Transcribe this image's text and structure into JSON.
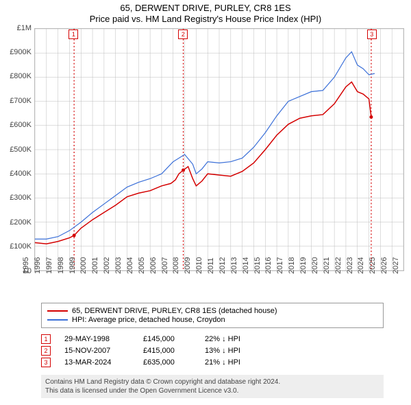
{
  "title": {
    "line1": "65, DERWENT DRIVE, PURLEY, CR8 1ES",
    "line2": "Price paid vs. HM Land Registry's House Price Index (HPI)",
    "fontsize": 13
  },
  "chart": {
    "type": "line",
    "background_color": "#ffffff",
    "grid_color": "#bbbbbb",
    "border_color": "#bbbbbb",
    "x": {
      "min": 1995,
      "max": 2027,
      "ticks": [
        1995,
        1996,
        1997,
        1998,
        1999,
        2000,
        2001,
        2002,
        2003,
        2004,
        2005,
        2006,
        2007,
        2008,
        2009,
        2010,
        2011,
        2012,
        2013,
        2014,
        2015,
        2016,
        2017,
        2018,
        2019,
        2020,
        2021,
        2022,
        2023,
        2024,
        2025,
        2026,
        2027
      ],
      "label_fontsize": 11
    },
    "y": {
      "min": 0,
      "max": 1000000,
      "ticks": [
        0,
        100000,
        200000,
        300000,
        400000,
        500000,
        600000,
        700000,
        800000,
        900000,
        1000000
      ],
      "tick_labels": [
        "£0",
        "£100K",
        "£200K",
        "£300K",
        "£400K",
        "£500K",
        "£600K",
        "£700K",
        "£800K",
        "£900K",
        "£1M"
      ],
      "label_fontsize": 11
    },
    "series": [
      {
        "name": "65, DERWENT DRIVE, PURLEY, CR8 1ES (detached house)",
        "color": "#d40000",
        "width": 1.5,
        "points": [
          [
            1995.0,
            115000
          ],
          [
            1996.0,
            110000
          ],
          [
            1997.0,
            120000
          ],
          [
            1998.0,
            135000
          ],
          [
            1998.4,
            145000
          ],
          [
            1999.0,
            175000
          ],
          [
            2000.0,
            210000
          ],
          [
            2001.0,
            240000
          ],
          [
            2002.0,
            270000
          ],
          [
            2003.0,
            305000
          ],
          [
            2004.0,
            320000
          ],
          [
            2005.0,
            330000
          ],
          [
            2006.0,
            350000
          ],
          [
            2006.8,
            360000
          ],
          [
            2007.2,
            375000
          ],
          [
            2007.5,
            400000
          ],
          [
            2007.88,
            415000
          ],
          [
            2008.3,
            430000
          ],
          [
            2008.7,
            380000
          ],
          [
            2009.0,
            350000
          ],
          [
            2009.5,
            370000
          ],
          [
            2010.0,
            400000
          ],
          [
            2011.0,
            395000
          ],
          [
            2012.0,
            390000
          ],
          [
            2013.0,
            410000
          ],
          [
            2014.0,
            445000
          ],
          [
            2015.0,
            500000
          ],
          [
            2016.0,
            560000
          ],
          [
            2017.0,
            605000
          ],
          [
            2018.0,
            630000
          ],
          [
            2019.0,
            640000
          ],
          [
            2020.0,
            645000
          ],
          [
            2021.0,
            690000
          ],
          [
            2022.0,
            760000
          ],
          [
            2022.5,
            780000
          ],
          [
            2023.0,
            740000
          ],
          [
            2023.5,
            730000
          ],
          [
            2024.0,
            710000
          ],
          [
            2024.2,
            635000
          ]
        ],
        "sale_points": [
          [
            1998.4,
            145000
          ],
          [
            2007.88,
            415000
          ],
          [
            2024.2,
            635000
          ]
        ]
      },
      {
        "name": "HPI: Average price, detached house, Croydon",
        "color": "#3a6fd8",
        "width": 1.2,
        "points": [
          [
            1995.0,
            130000
          ],
          [
            1996.0,
            130000
          ],
          [
            1997.0,
            140000
          ],
          [
            1998.0,
            165000
          ],
          [
            1999.0,
            200000
          ],
          [
            2000.0,
            240000
          ],
          [
            2001.0,
            275000
          ],
          [
            2002.0,
            310000
          ],
          [
            2003.0,
            345000
          ],
          [
            2004.0,
            365000
          ],
          [
            2005.0,
            380000
          ],
          [
            2006.0,
            400000
          ],
          [
            2007.0,
            450000
          ],
          [
            2007.5,
            465000
          ],
          [
            2008.0,
            480000
          ],
          [
            2008.7,
            440000
          ],
          [
            2009.0,
            400000
          ],
          [
            2009.5,
            420000
          ],
          [
            2010.0,
            450000
          ],
          [
            2011.0,
            445000
          ],
          [
            2012.0,
            450000
          ],
          [
            2013.0,
            465000
          ],
          [
            2014.0,
            510000
          ],
          [
            2015.0,
            570000
          ],
          [
            2016.0,
            640000
          ],
          [
            2017.0,
            700000
          ],
          [
            2018.0,
            720000
          ],
          [
            2019.0,
            740000
          ],
          [
            2020.0,
            745000
          ],
          [
            2021.0,
            800000
          ],
          [
            2022.0,
            880000
          ],
          [
            2022.5,
            905000
          ],
          [
            2023.0,
            850000
          ],
          [
            2023.5,
            835000
          ],
          [
            2024.0,
            810000
          ],
          [
            2024.5,
            815000
          ]
        ]
      }
    ],
    "markers": [
      {
        "n": "1",
        "x": 1998.4,
        "color": "#d40000"
      },
      {
        "n": "2",
        "x": 2007.88,
        "color": "#d40000"
      },
      {
        "n": "3",
        "x": 2024.2,
        "color": "#d40000"
      }
    ]
  },
  "legend": {
    "items": [
      {
        "color": "#d40000",
        "label": "65, DERWENT DRIVE, PURLEY, CR8 1ES (detached house)"
      },
      {
        "color": "#3a6fd8",
        "label": "HPI: Average price, detached house, Croydon"
      }
    ]
  },
  "events": [
    {
      "n": "1",
      "color": "#d40000",
      "date": "29-MAY-1998",
      "price": "£145,000",
      "delta": "22% ↓ HPI"
    },
    {
      "n": "2",
      "color": "#d40000",
      "date": "15-NOV-2007",
      "price": "£415,000",
      "delta": "13% ↓ HPI"
    },
    {
      "n": "3",
      "color": "#d40000",
      "date": "13-MAR-2024",
      "price": "£635,000",
      "delta": "21% ↓ HPI"
    }
  ],
  "footnote": {
    "line1": "Contains HM Land Registry data © Crown copyright and database right 2024.",
    "line2": "This data is licensed under the Open Government Licence v3.0."
  }
}
